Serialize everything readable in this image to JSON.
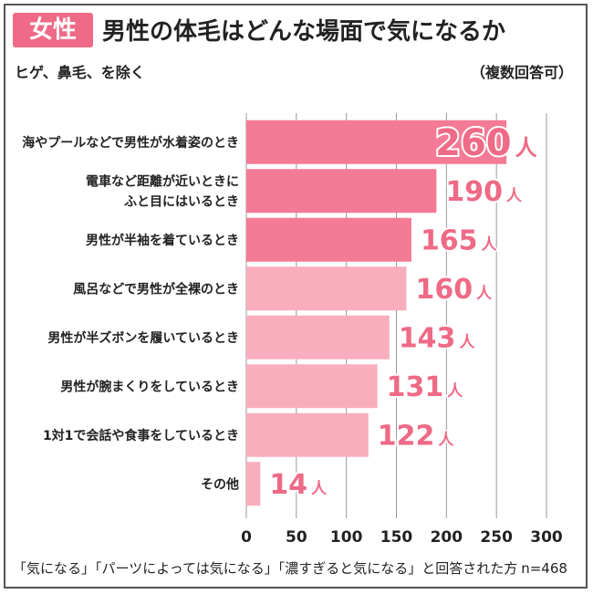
{
  "header": {
    "badge": "女性",
    "title": "男性の体毛はどんな場面で気になるか",
    "subtitle": "ヒゲ、鼻毛、を除く",
    "note": "（複数回答可）"
  },
  "footer": {
    "text": "「気になる」「パーツによっては気になる」「濃すぎると気になる」と回答された方",
    "n": "n=468"
  },
  "colors": {
    "accent": "#ee6a86",
    "bar_dark": "#f47a95",
    "bar_light": "#f9aebe",
    "grid": "#999999"
  },
  "chart_data": {
    "type": "bar",
    "orientation": "horizontal",
    "categories": [
      [
        "海やプールなどで男性が水着姿のとき"
      ],
      [
        "電車など距離が近いときに",
        "ふと目にはいるとき"
      ],
      [
        "男性が半袖を着ているとき"
      ],
      [
        "風呂などで男性が全裸のとき"
      ],
      [
        "男性が半ズボンを履いているとき"
      ],
      [
        "男性が腕まくりをしているとき"
      ],
      [
        "1対1で会話や食事をしているとき"
      ],
      [
        "その他"
      ]
    ],
    "values": [
      260,
      190,
      165,
      160,
      143,
      131,
      122,
      14
    ],
    "unit": "人",
    "highlight_top": 3,
    "xlim": [
      0,
      300
    ],
    "xticks": [
      0,
      50,
      100,
      150,
      200,
      250,
      300
    ],
    "grid": true
  }
}
